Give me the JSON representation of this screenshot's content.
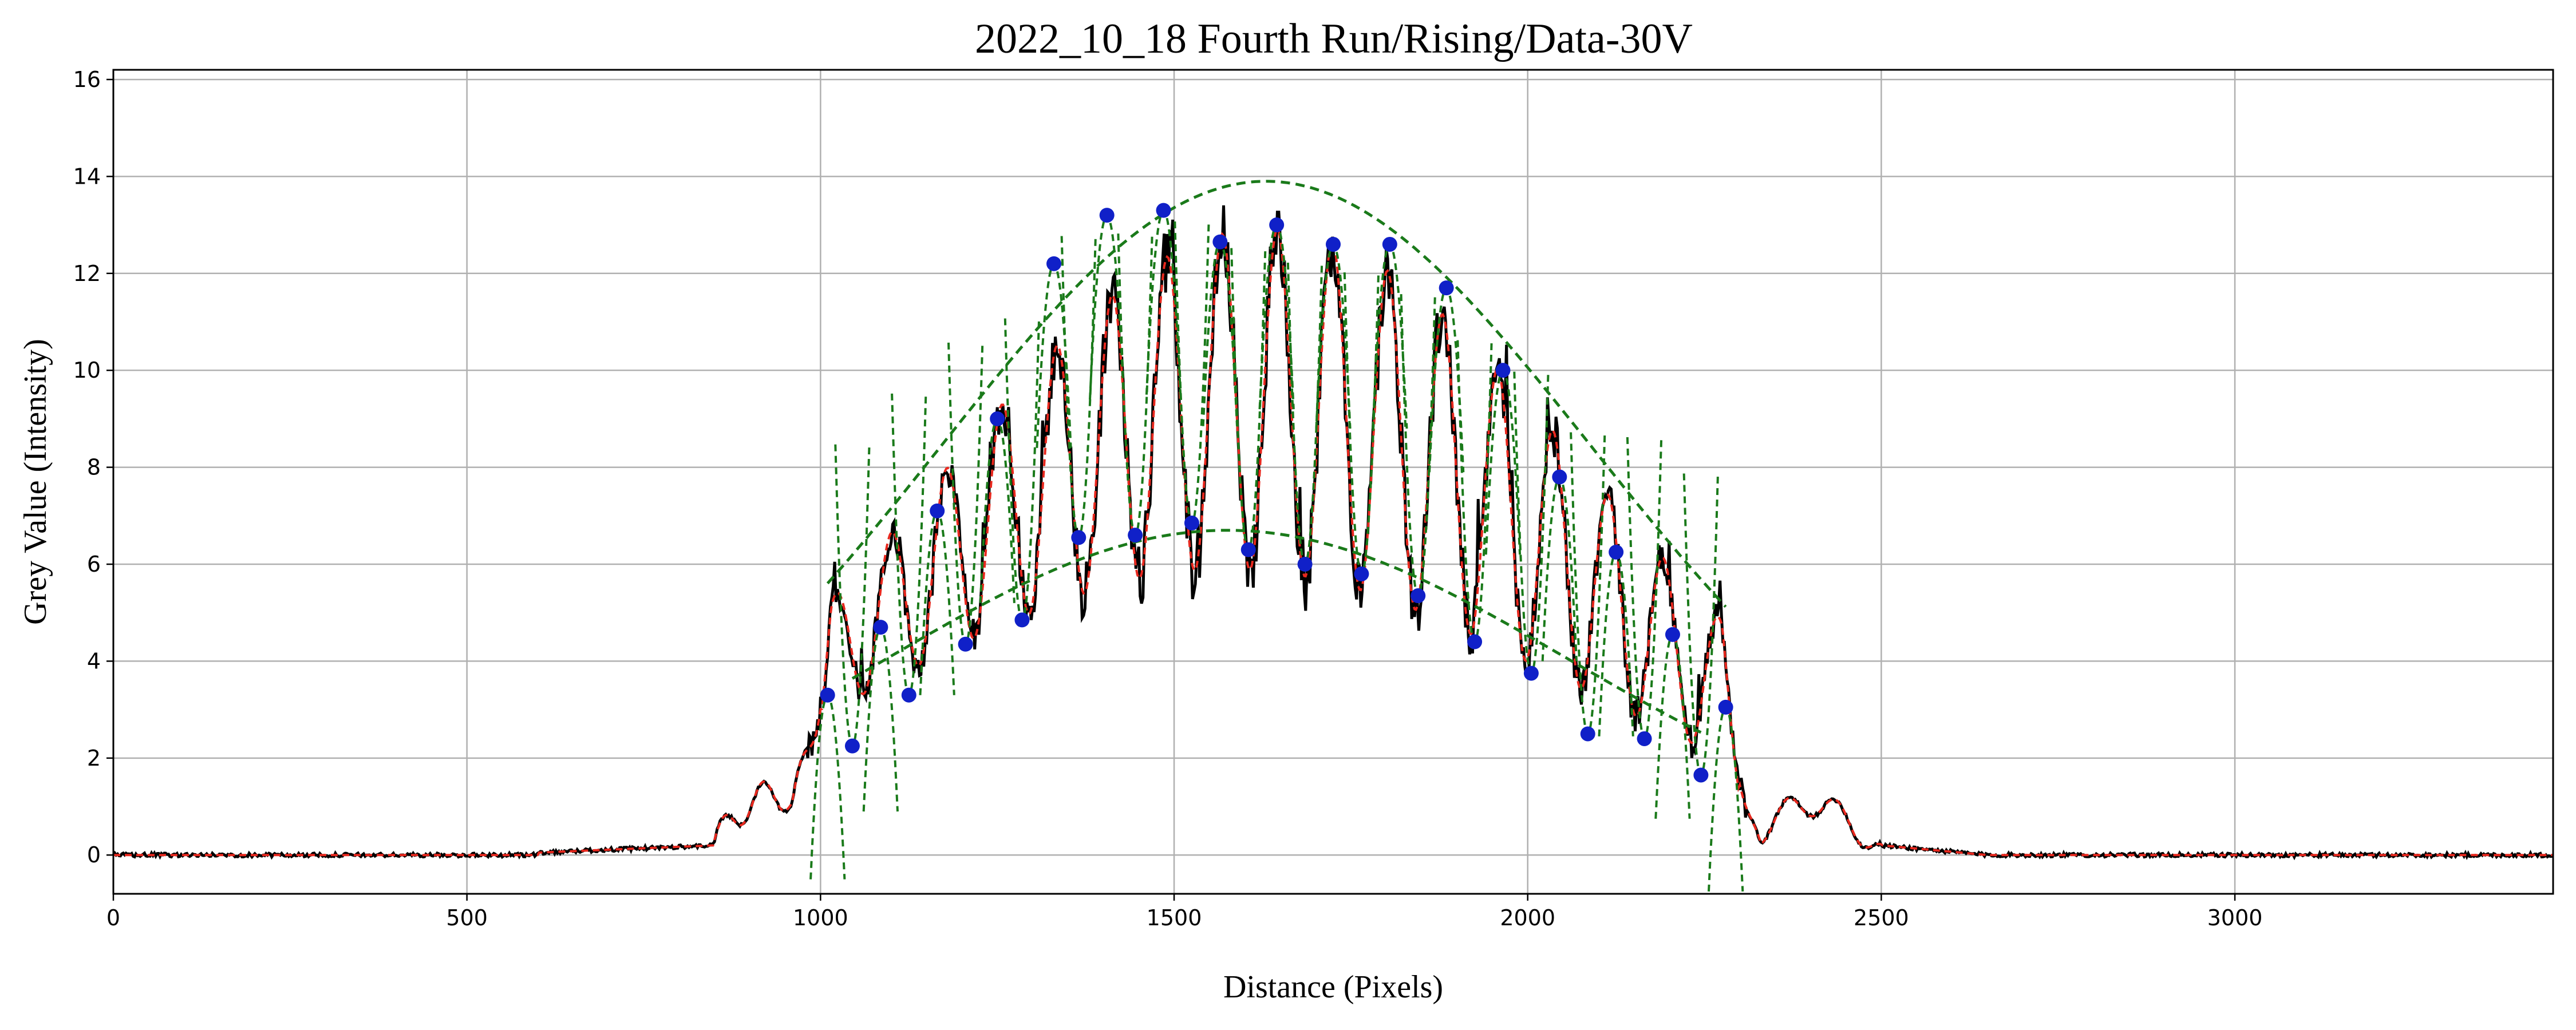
{
  "chart_data": {
    "type": "line",
    "title": "2022_10_18 Fourth Run/Rising/Data-30V",
    "xlabel": "Distance (Pixels)",
    "ylabel": "Grey Value (Intensity)",
    "xlim": [
      0,
      3450
    ],
    "ylim": [
      -0.8,
      16.2
    ],
    "xticks": [
      0,
      500,
      1000,
      1500,
      2000,
      2500,
      3000
    ],
    "yticks": [
      0,
      2,
      4,
      6,
      8,
      10,
      12,
      14,
      16
    ],
    "grid": true,
    "colors": {
      "raw": "#000000",
      "smoothed": "#e8281e",
      "fit": "#1a7a1a",
      "marker": "#1020c8",
      "grid": "#b0b0b0"
    },
    "profile_params": {
      "center": 1645,
      "period": 78,
      "min_phase_x": 1685
    },
    "extrema_points": [
      {
        "x": 1010,
        "y": 3.3
      },
      {
        "x": 1045,
        "y": 2.25
      },
      {
        "x": 1085,
        "y": 4.7
      },
      {
        "x": 1125,
        "y": 3.3
      },
      {
        "x": 1165,
        "y": 7.1
      },
      {
        "x": 1205,
        "y": 4.35
      },
      {
        "x": 1250,
        "y": 9.0
      },
      {
        "x": 1285,
        "y": 4.85
      },
      {
        "x": 1330,
        "y": 12.2
      },
      {
        "x": 1365,
        "y": 6.55
      },
      {
        "x": 1405,
        "y": 13.2
      },
      {
        "x": 1445,
        "y": 6.6
      },
      {
        "x": 1485,
        "y": 13.3
      },
      {
        "x": 1525,
        "y": 6.85
      },
      {
        "x": 1565,
        "y": 12.65
      },
      {
        "x": 1605,
        "y": 6.3
      },
      {
        "x": 1645,
        "y": 13.0
      },
      {
        "x": 1685,
        "y": 6.0
      },
      {
        "x": 1725,
        "y": 12.6
      },
      {
        "x": 1765,
        "y": 5.8
      },
      {
        "x": 1805,
        "y": 12.6
      },
      {
        "x": 1845,
        "y": 5.35
      },
      {
        "x": 1885,
        "y": 11.7
      },
      {
        "x": 1925,
        "y": 4.4
      },
      {
        "x": 1965,
        "y": 10.0
      },
      {
        "x": 2005,
        "y": 3.75
      },
      {
        "x": 2045,
        "y": 7.8
      },
      {
        "x": 2085,
        "y": 2.5
      },
      {
        "x": 2125,
        "y": 6.25
      },
      {
        "x": 2165,
        "y": 2.4
      },
      {
        "x": 2205,
        "y": 4.55
      },
      {
        "x": 2245,
        "y": 1.65
      },
      {
        "x": 2280,
        "y": 3.05
      }
    ],
    "upper_envelope": {
      "peak": 13.9,
      "center": 1630,
      "sigma": 460,
      "x_range": [
        1010,
        2280
      ]
    },
    "lower_envelope": {
      "peak": 6.7,
      "center": 1575,
      "sigma": 480,
      "x_range": [
        1045,
        2245
      ]
    }
  }
}
